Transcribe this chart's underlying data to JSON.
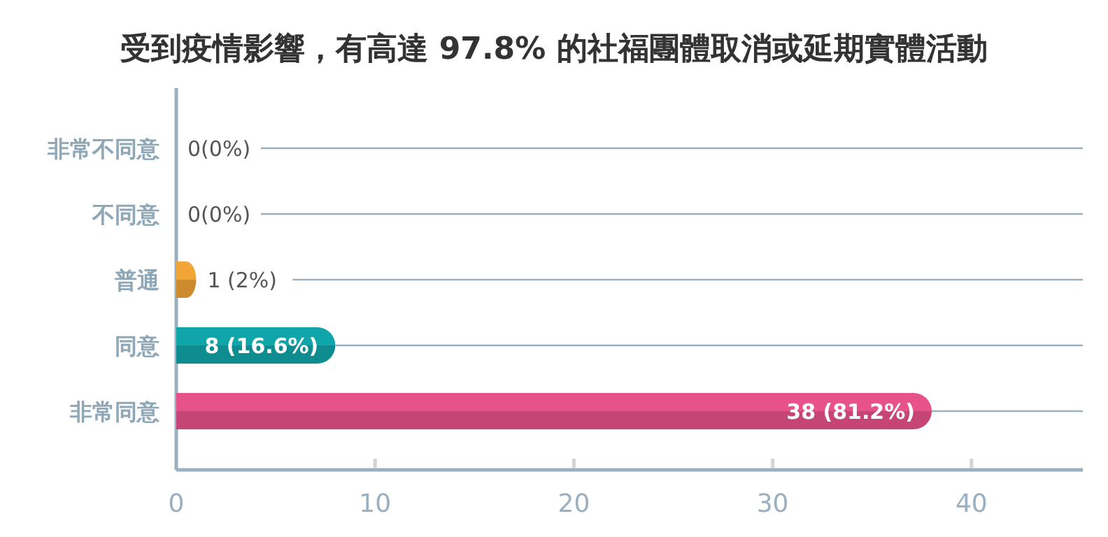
{
  "chart_data": {
    "type": "bar",
    "orientation": "horizontal",
    "title": "受到疫情影響，有高達 97.8% 的社福團體取消或延期實體活動",
    "categories": [
      "非常不同意",
      "不同意",
      "普通",
      "同意",
      "非常同意"
    ],
    "values": [
      0,
      0,
      1,
      8,
      38
    ],
    "colors": [
      "#8fa8b8",
      "#8fa8b8",
      "#f0a535",
      "#10a5a8",
      "#e8528a"
    ],
    "value_labels": [
      "0(0%)",
      "0(0%)",
      "1 (2%)",
      "8 (16.6%)",
      "38 (81.2%)"
    ],
    "xlim": [
      0,
      45.6
    ],
    "xticks": [
      0,
      10,
      20,
      30,
      40
    ],
    "grid": "y"
  }
}
